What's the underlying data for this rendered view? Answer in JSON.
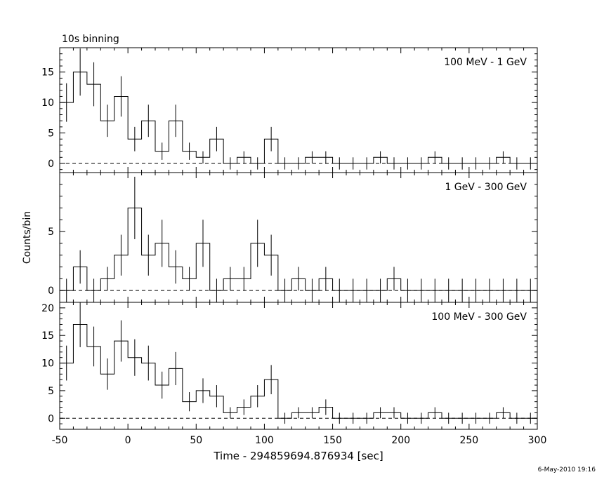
{
  "header_label": "10s binning",
  "footer_timestamp": "6-May-2010 19:16",
  "chart_data": [
    {
      "type": "line",
      "step": true,
      "panel_label": "100 MeV - 1 GeV",
      "x": [
        -45,
        -35,
        -25,
        -15,
        -5,
        5,
        15,
        25,
        35,
        45,
        55,
        65,
        75,
        85,
        95,
        105,
        115,
        125,
        135,
        145,
        155,
        165,
        175,
        185,
        195,
        205,
        215,
        225,
        235,
        245,
        255,
        265,
        275,
        285,
        295
      ],
      "values": [
        10,
        15,
        13,
        7,
        11,
        4,
        7,
        2,
        7,
        2,
        1,
        4,
        0,
        1,
        0,
        4,
        0,
        0,
        1,
        1,
        0,
        0,
        0,
        1,
        0,
        0,
        0,
        1,
        0,
        0,
        0,
        0,
        1,
        0,
        0
      ],
      "ylim": [
        -1.5,
        19
      ],
      "yticks": [
        0,
        5,
        10,
        15
      ],
      "ylabel": "",
      "xlim": [
        -50,
        300
      ]
    },
    {
      "type": "line",
      "step": true,
      "panel_label": "1 GeV - 300 GeV",
      "x": [
        -45,
        -35,
        -25,
        -15,
        -5,
        5,
        15,
        25,
        35,
        45,
        55,
        65,
        75,
        85,
        95,
        105,
        115,
        125,
        135,
        145,
        155,
        165,
        175,
        185,
        195,
        205,
        215,
        225,
        235,
        245,
        255,
        265,
        275,
        285,
        295
      ],
      "values": [
        0,
        2,
        0,
        1,
        3,
        7,
        3,
        4,
        2,
        1,
        4,
        0,
        1,
        1,
        4,
        3,
        0,
        1,
        0,
        1,
        0,
        0,
        0,
        0,
        1,
        0,
        0,
        0,
        0,
        0,
        0,
        0,
        0,
        0,
        0
      ],
      "ylim": [
        -1.0,
        10
      ],
      "yticks": [
        0,
        5
      ],
      "ylabel": "Counts/bin",
      "xlim": [
        -50,
        300
      ]
    },
    {
      "type": "line",
      "step": true,
      "panel_label": "100 MeV - 300 GeV",
      "x": [
        -45,
        -35,
        -25,
        -15,
        -5,
        5,
        15,
        25,
        35,
        45,
        55,
        65,
        75,
        85,
        95,
        105,
        115,
        125,
        135,
        145,
        155,
        165,
        175,
        185,
        195,
        205,
        215,
        225,
        235,
        245,
        255,
        265,
        275,
        285,
        295
      ],
      "values": [
        10,
        17,
        13,
        8,
        14,
        11,
        10,
        6,
        9,
        3,
        5,
        4,
        1,
        2,
        4,
        7,
        0,
        1,
        1,
        2,
        0,
        0,
        0,
        1,
        1,
        0,
        0,
        1,
        0,
        0,
        0,
        0,
        1,
        0,
        0
      ],
      "ylim": [
        -2.0,
        21
      ],
      "yticks": [
        0,
        5,
        10,
        15,
        20
      ],
      "ylabel": "",
      "xlim": [
        -50,
        300
      ],
      "xticks": [
        -50,
        0,
        50,
        100,
        150,
        200,
        250,
        300
      ],
      "xlabel": "Time - 294859694.876934 [sec]"
    }
  ]
}
